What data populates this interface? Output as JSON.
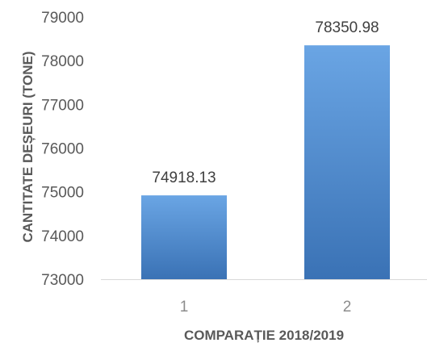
{
  "chart_data": {
    "type": "bar",
    "categories": [
      "1",
      "2"
    ],
    "values": [
      74918.13,
      78350.98
    ],
    "value_labels": [
      "74918.13",
      "78350.98"
    ],
    "xlabel": "COMPARAȚIE 2018/2019",
    "ylabel": "CANTITATE DEȘEURI (TONE)",
    "ylim": [
      73000,
      79000
    ],
    "yticks": [
      "73000",
      "74000",
      "75000",
      "76000",
      "77000",
      "78000",
      "79000"
    ],
    "grid": false,
    "bar_color": "#4e8bd0",
    "bar_highlight": "#6aa5e4",
    "bar_shadow": "#3a72b5"
  }
}
